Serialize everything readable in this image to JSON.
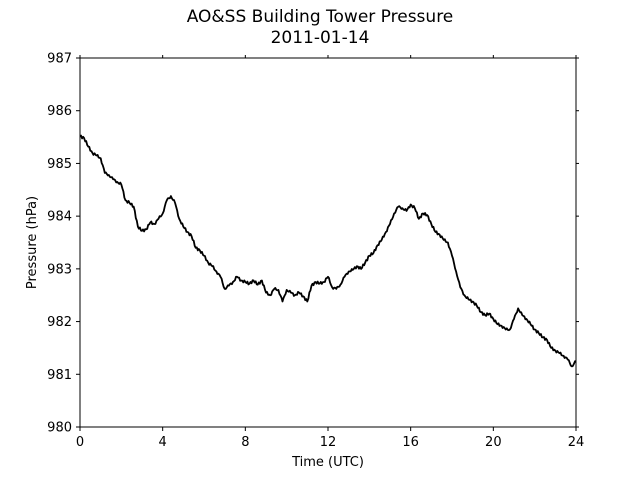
{
  "chart_data": {
    "type": "line",
    "title": "AO&SS Building Tower Pressure",
    "subtitle": "2011-01-14",
    "xlabel": "Time (UTC)",
    "ylabel": "Pressure (hPa)",
    "xlim": [
      0,
      24
    ],
    "ylim": [
      980,
      987
    ],
    "xticks": [
      0,
      4,
      8,
      12,
      16,
      20,
      24
    ],
    "yticks": [
      980,
      981,
      982,
      983,
      984,
      985,
      986,
      987
    ],
    "grid": false,
    "series": [
      {
        "color": "#000000",
        "x": [
          0.0,
          0.2,
          0.4,
          0.6,
          0.8,
          1.0,
          1.2,
          1.4,
          1.6,
          1.8,
          2.0,
          2.2,
          2.4,
          2.6,
          2.8,
          3.0,
          3.2,
          3.4,
          3.6,
          3.8,
          4.0,
          4.2,
          4.4,
          4.6,
          4.8,
          5.0,
          5.2,
          5.4,
          5.6,
          5.8,
          6.0,
          6.2,
          6.4,
          6.6,
          6.8,
          7.0,
          7.2,
          7.4,
          7.6,
          7.8,
          8.0,
          8.2,
          8.4,
          8.6,
          8.8,
          9.0,
          9.2,
          9.4,
          9.6,
          9.8,
          10.0,
          10.2,
          10.4,
          10.6,
          10.8,
          11.0,
          11.2,
          11.4,
          11.6,
          11.8,
          12.0,
          12.2,
          12.4,
          12.6,
          12.8,
          13.0,
          13.2,
          13.4,
          13.6,
          13.8,
          14.0,
          14.2,
          14.4,
          14.6,
          14.8,
          15.0,
          15.2,
          15.4,
          15.6,
          15.8,
          16.0,
          16.2,
          16.4,
          16.6,
          16.8,
          17.0,
          17.2,
          17.4,
          17.6,
          17.8,
          18.0,
          18.2,
          18.4,
          18.6,
          18.8,
          19.0,
          19.2,
          19.4,
          19.6,
          19.8,
          20.0,
          20.2,
          20.4,
          20.6,
          20.8,
          21.0,
          21.2,
          21.4,
          21.6,
          21.8,
          22.0,
          22.2,
          22.4,
          22.6,
          22.8,
          23.0,
          23.2,
          23.4,
          23.6,
          23.8,
          24.0
        ],
        "values": [
          985.52,
          985.48,
          985.32,
          985.2,
          985.15,
          985.1,
          984.82,
          984.78,
          984.7,
          984.65,
          984.6,
          984.3,
          984.25,
          984.18,
          983.8,
          983.72,
          983.75,
          983.88,
          983.85,
          983.95,
          984.05,
          984.3,
          984.38,
          984.25,
          983.95,
          983.8,
          983.7,
          983.62,
          983.4,
          983.35,
          983.25,
          983.12,
          983.05,
          982.95,
          982.85,
          982.62,
          982.68,
          982.75,
          982.85,
          982.78,
          982.75,
          982.72,
          982.78,
          982.7,
          982.78,
          982.55,
          982.5,
          982.62,
          982.6,
          982.38,
          982.6,
          982.55,
          982.5,
          982.55,
          982.48,
          982.38,
          982.68,
          982.75,
          982.72,
          982.75,
          982.85,
          982.65,
          982.62,
          982.7,
          982.85,
          982.95,
          982.98,
          983.05,
          983.0,
          983.12,
          983.25,
          983.3,
          983.45,
          983.55,
          983.7,
          983.85,
          984.05,
          984.18,
          984.15,
          984.1,
          984.22,
          984.15,
          983.95,
          984.05,
          984.02,
          983.85,
          983.7,
          983.65,
          983.55,
          983.5,
          983.25,
          982.95,
          982.65,
          982.5,
          982.42,
          982.38,
          982.3,
          982.18,
          982.12,
          982.15,
          982.05,
          981.95,
          981.92,
          981.85,
          981.85,
          982.05,
          982.25,
          982.12,
          982.05,
          981.95,
          981.85,
          981.78,
          981.7,
          981.65,
          981.5,
          981.45,
          981.4,
          981.35,
          981.28,
          981.15,
          981.25
        ]
      }
    ]
  }
}
